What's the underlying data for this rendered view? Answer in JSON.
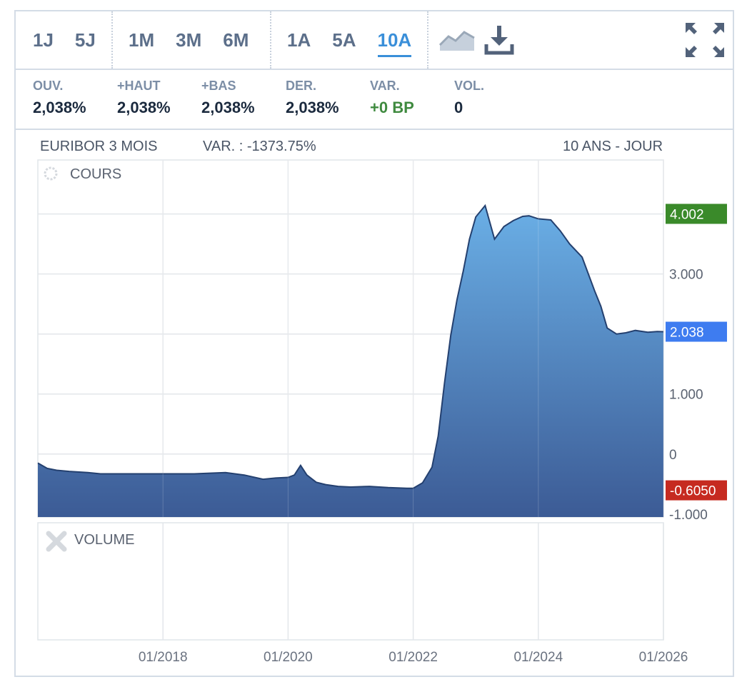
{
  "periods": [
    {
      "label": "1J",
      "active": false
    },
    {
      "label": "5J",
      "active": false
    },
    {
      "label": "1M",
      "active": false
    },
    {
      "label": "3M",
      "active": false
    },
    {
      "label": "6M",
      "active": false
    },
    {
      "label": "1A",
      "active": false
    },
    {
      "label": "5A",
      "active": false
    },
    {
      "label": "10A",
      "active": true
    }
  ],
  "icons": {
    "chart_type": "area-chart-icon",
    "download": "download-icon",
    "fullscreen": "expand-icon"
  },
  "stats": [
    {
      "label": "OUV.",
      "value": "2,038%"
    },
    {
      "label": "+HAUT",
      "value": "2,038%"
    },
    {
      "label": "+BAS",
      "value": "2,038%"
    },
    {
      "label": "DER.",
      "value": "2,038%"
    },
    {
      "label": "VAR.",
      "value": "+0 BP"
    },
    {
      "label": "VOL.",
      "value": "0"
    }
  ],
  "chart_header": {
    "instrument": "EURIBOR 3 MOIS",
    "variation": "VAR. : -1373.75%",
    "range": "10 ANS - JOUR"
  },
  "colors": {
    "accent": "#3a8fd9",
    "positive": "#3f8a3f",
    "max_tag": "#3a8a2a",
    "min_tag": "#c62a20",
    "last_tag": "#3e7cf0",
    "area_top": "#6aafe6",
    "area_bottom": "#3c5b95"
  },
  "chart_data": [
    {
      "type": "area",
      "panel": "COURS",
      "x_tick_labels": [
        "01/2018",
        "01/2020",
        "01/2022",
        "01/2024",
        "01/2026"
      ],
      "x_range": [
        2016.0,
        2026.0
      ],
      "y_ticks": [
        -1,
        0,
        1,
        2,
        3,
        4
      ],
      "y_tick_labels": [
        "-1.000",
        "0",
        "1.000",
        "",
        "3.000",
        ""
      ],
      "ylim": [
        -1.05,
        4.9
      ],
      "markers": {
        "max": "4.002",
        "min": "-0.6050",
        "last": "2.038"
      },
      "grid": true,
      "series": [
        {
          "x": [
            2016.0,
            2016.15,
            2016.3,
            2016.5,
            2016.8,
            2017.0,
            2017.5,
            2018.0,
            2018.5,
            2019.0,
            2019.3,
            2019.6,
            2019.8,
            2020.0,
            2020.1,
            2020.2,
            2020.3,
            2020.45,
            2020.6,
            2020.8,
            2021.0,
            2021.3,
            2021.6,
            2021.9,
            2022.0,
            2022.15,
            2022.3,
            2022.4,
            2022.5,
            2022.6,
            2022.7,
            2022.8,
            2022.9,
            2023.0,
            2023.15,
            2023.3,
            2023.45,
            2023.6,
            2023.75,
            2023.85,
            2024.0,
            2024.2,
            2024.35,
            2024.5,
            2024.7,
            2024.9,
            2025.0,
            2025.1,
            2025.25,
            2025.4,
            2025.55,
            2025.75,
            2025.9,
            2026.0
          ],
          "y": [
            -0.15,
            -0.24,
            -0.27,
            -0.29,
            -0.31,
            -0.33,
            -0.33,
            -0.33,
            -0.33,
            -0.31,
            -0.35,
            -0.42,
            -0.4,
            -0.39,
            -0.35,
            -0.19,
            -0.35,
            -0.47,
            -0.51,
            -0.54,
            -0.55,
            -0.54,
            -0.56,
            -0.57,
            -0.57,
            -0.48,
            -0.22,
            0.3,
            1.18,
            1.98,
            2.57,
            3.05,
            3.58,
            3.95,
            4.14,
            3.58,
            3.79,
            3.89,
            3.96,
            3.97,
            3.92,
            3.9,
            3.72,
            3.5,
            3.28,
            2.72,
            2.46,
            2.1,
            2.0,
            2.02,
            2.06,
            2.03,
            2.04,
            2.038
          ]
        }
      ]
    },
    {
      "type": "bar",
      "panel": "VOLUME",
      "series": []
    }
  ]
}
